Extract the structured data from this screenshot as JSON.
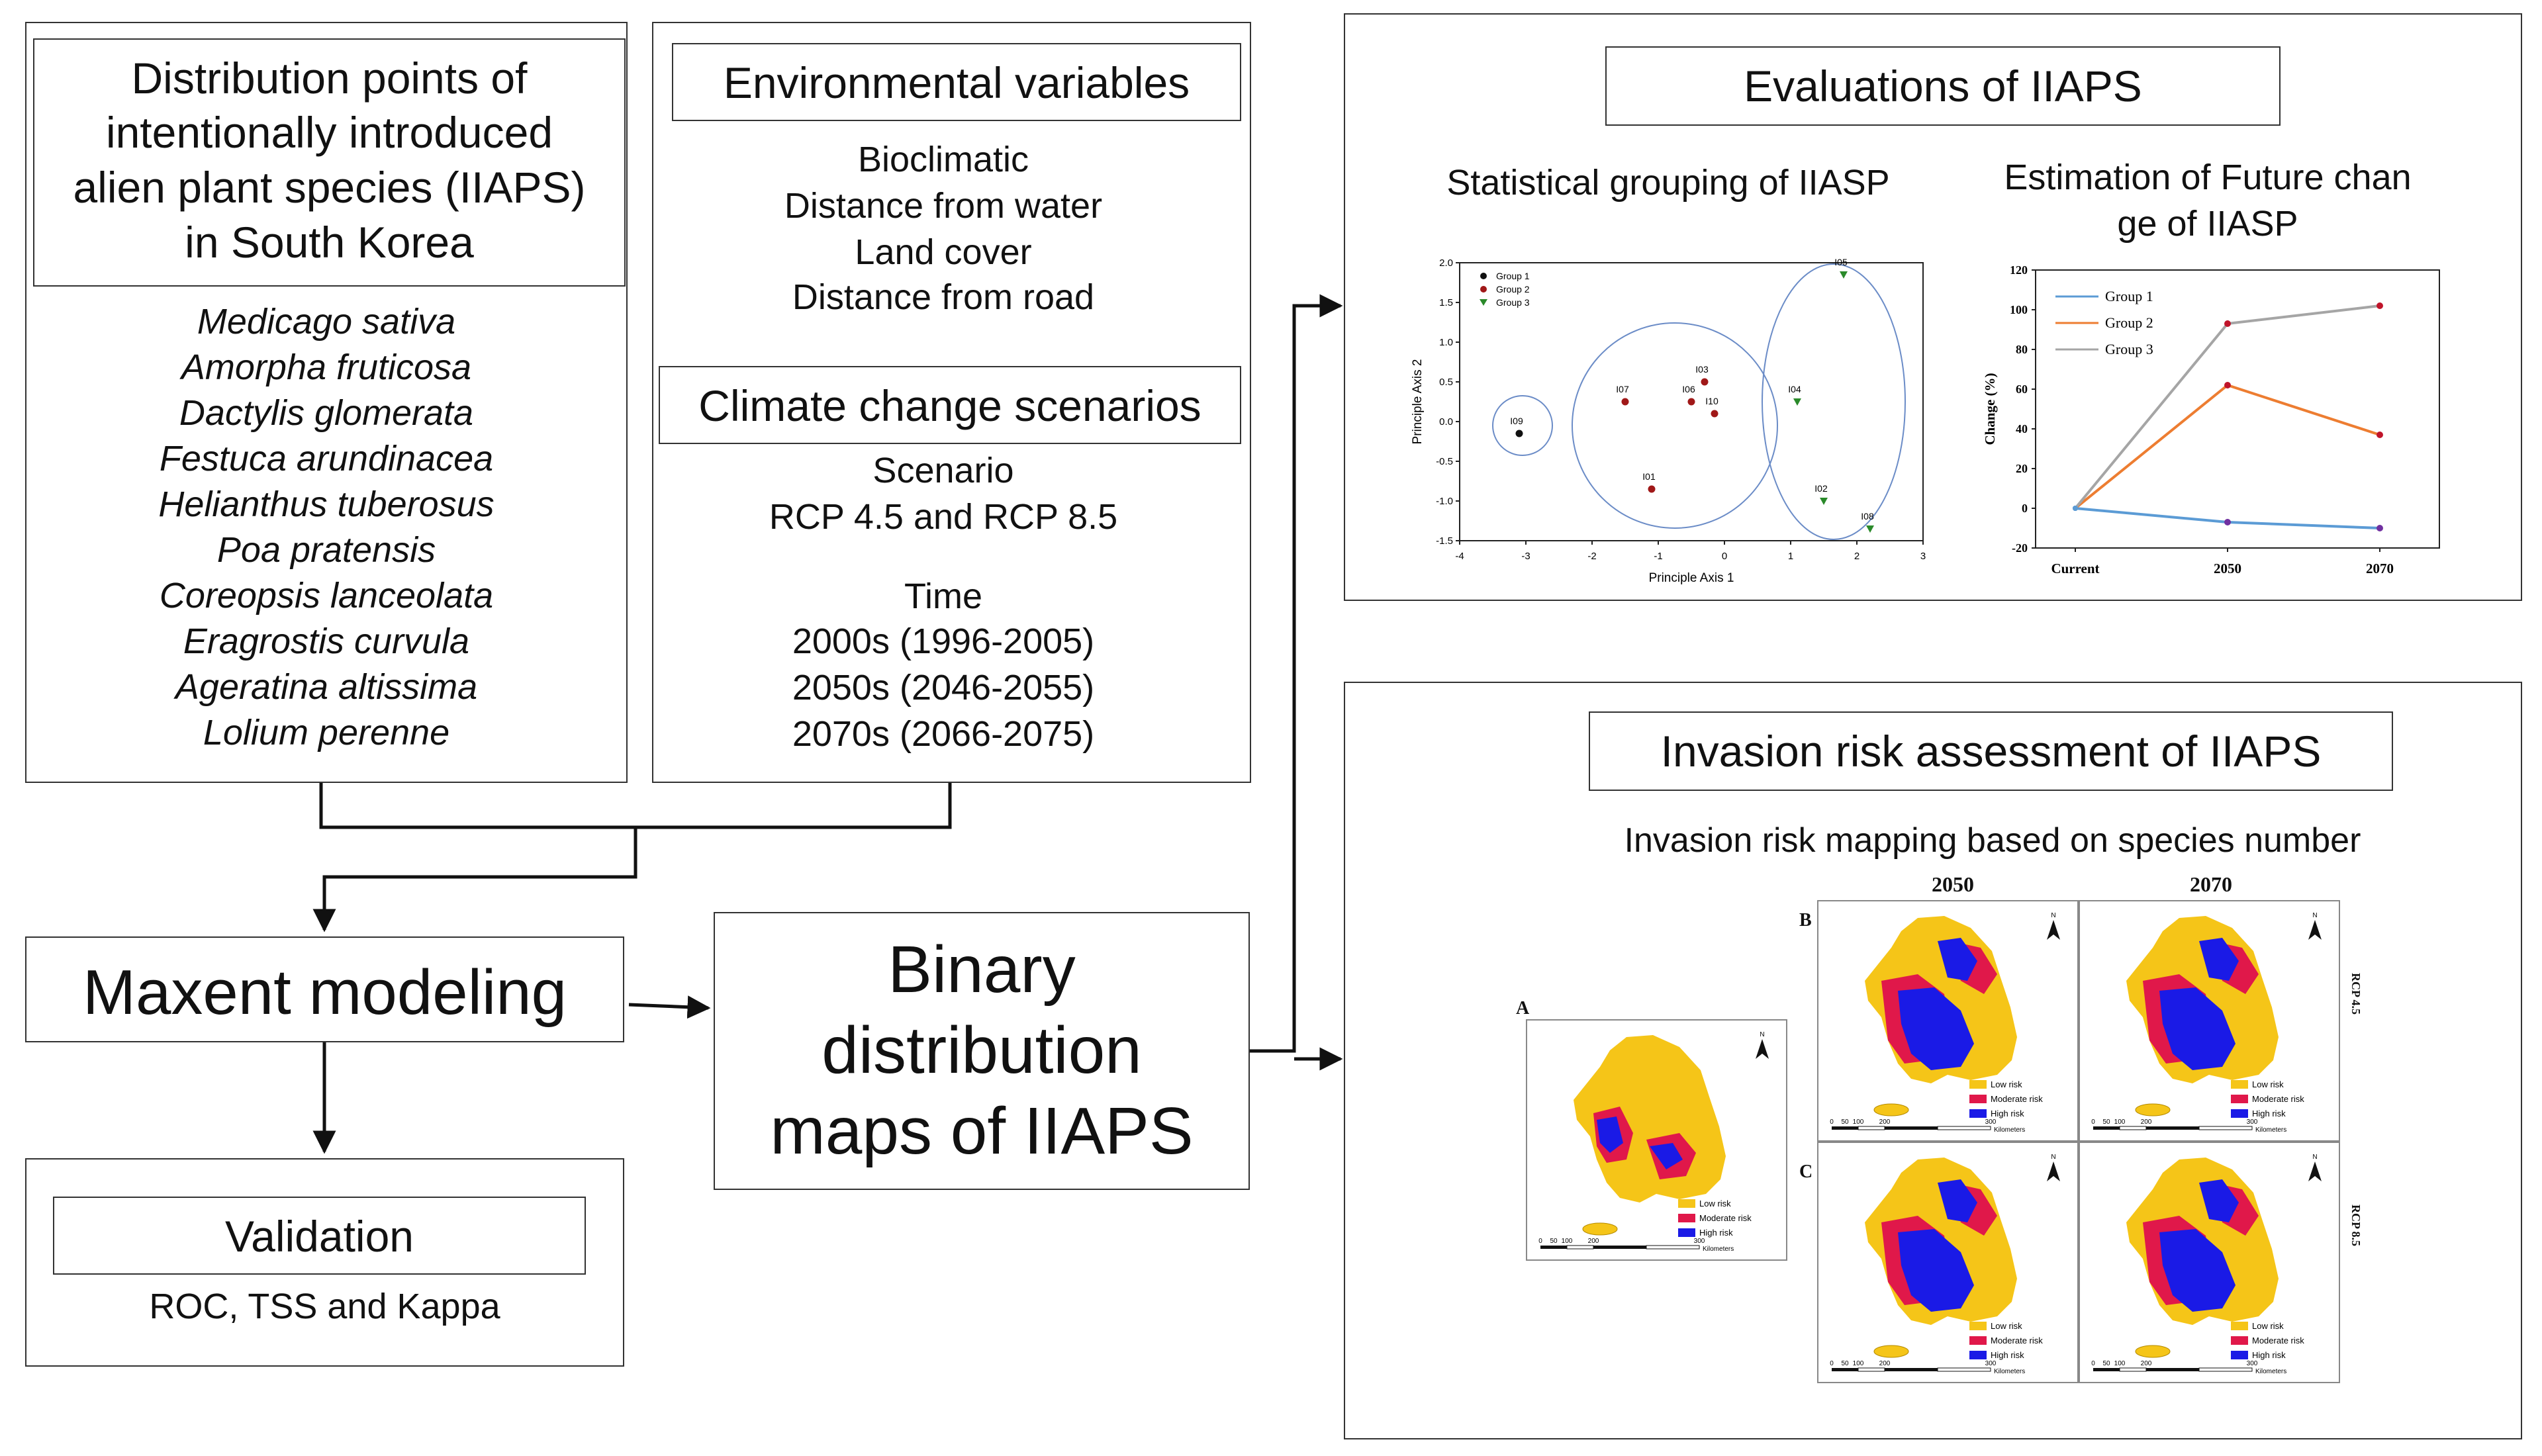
{
  "distribution": {
    "title_lines": [
      "Distribution points of",
      "intentionally introduced",
      "alien plant species (IIAPS)",
      "in South Korea"
    ],
    "species": [
      "Medicago sativa",
      "Amorpha fruticosa",
      "Dactylis glomerata",
      "Festuca arundinacea",
      "Helianthus tuberosus",
      "Poa pratensis",
      "Coreopsis lanceolata",
      "Eragrostis curvula",
      "Ageratina altissima",
      "Lolium perenne"
    ]
  },
  "environment": {
    "title": "Environmental variables",
    "items": [
      "Bioclimatic",
      "Distance from water",
      "Land cover",
      "Distance from road"
    ],
    "climate_title": "Climate change scenarios",
    "scenario_label": "Scenario",
    "scenario_value": "RCP 4.5 and RCP 8.5",
    "time_label": "Time",
    "times": [
      "2000s (1996-2005)",
      "2050s (2046-2055)",
      "2070s (2066-2075)"
    ]
  },
  "maxent": {
    "label": "Maxent modeling"
  },
  "validation": {
    "title": "Validation",
    "metrics": "ROC, TSS and Kappa"
  },
  "binary": {
    "lines": [
      "Binary",
      "distribution",
      "maps of IIAPS"
    ]
  },
  "evaluations": {
    "title": "Evaluations of IIAPS",
    "grouping_title": "Statistical grouping of IIASP",
    "future_title_lines": [
      "Estimation of Future chan",
      "ge of IIASP"
    ]
  },
  "invasion": {
    "title": "Invasion risk assessment of IIAPS",
    "subtitle": "Invasion risk mapping based on species number",
    "col_2050": "2050",
    "col_2070": "2070",
    "row_rcp45": "RCP 4.5",
    "row_rcp85": "RCP 8.5",
    "panel_a": "A",
    "panel_b": "B",
    "panel_c": "C",
    "legend": [
      "Low risk",
      "Moderate risk",
      "High risk"
    ],
    "legend_colors": [
      "#f5c518",
      "#e0184a",
      "#1a1ae6"
    ],
    "scale_ticks": [
      "0",
      "50",
      "100",
      "200",
      "300"
    ],
    "scale_unit": "Kilometers",
    "north": "N"
  },
  "chart_data": [
    {
      "type": "scatter",
      "xlabel": "Principle Axis 1",
      "ylabel": "Principle Axis 2",
      "xlim": [
        -4,
        3
      ],
      "ylim": [
        -1.5,
        2.0
      ],
      "x_ticks": [
        "-4",
        "-3",
        "-2",
        "-1",
        "0",
        "1",
        "2",
        "3"
      ],
      "y_ticks": [
        "-1.5",
        "-1.0",
        "-0.5",
        "0.0",
        "0.5",
        "1.0",
        "1.5",
        "2.0"
      ],
      "legend": [
        "Group 1",
        "Group 2",
        "Group 3"
      ],
      "legend_position": "top-left",
      "colors": [
        "#111111",
        "#a01818",
        "#2a8a2a"
      ],
      "points": [
        {
          "label": "I09",
          "x": -3.1,
          "y": -0.15,
          "group": 0
        },
        {
          "label": "I07",
          "x": -1.5,
          "y": 0.25,
          "group": 1
        },
        {
          "label": "I06",
          "x": -0.5,
          "y": 0.25,
          "group": 1
        },
        {
          "label": "I03",
          "x": -0.3,
          "y": 0.5,
          "group": 1
        },
        {
          "label": "I10",
          "x": -0.15,
          "y": 0.1,
          "group": 1
        },
        {
          "label": "I01",
          "x": -1.1,
          "y": -0.85,
          "group": 1
        },
        {
          "label": "I05",
          "x": 1.8,
          "y": 1.85,
          "group": 2
        },
        {
          "label": "I04",
          "x": 1.1,
          "y": 0.25,
          "group": 2
        },
        {
          "label": "I02",
          "x": 1.5,
          "y": -1.0,
          "group": 2
        },
        {
          "label": "I08",
          "x": 2.2,
          "y": -1.35,
          "group": 2
        }
      ]
    },
    {
      "type": "line",
      "ylabel": "Change (%)",
      "categories": [
        "Current",
        "2050",
        "2070"
      ],
      "ylim": [
        -20,
        120
      ],
      "y_ticks": [
        "120",
        "100",
        "80",
        "60",
        "40",
        "20",
        "0",
        "-20"
      ],
      "legend_position": "top-left",
      "series": [
        {
          "name": "Group 1",
          "values": [
            0,
            -7,
            -10
          ],
          "color": "#5b9bd5"
        },
        {
          "name": "Group 2",
          "values": [
            0,
            62,
            37
          ],
          "color": "#ed7d31"
        },
        {
          "name": "Group 3",
          "values": [
            0,
            93,
            102
          ],
          "color": "#a5a5a5"
        }
      ]
    }
  ]
}
